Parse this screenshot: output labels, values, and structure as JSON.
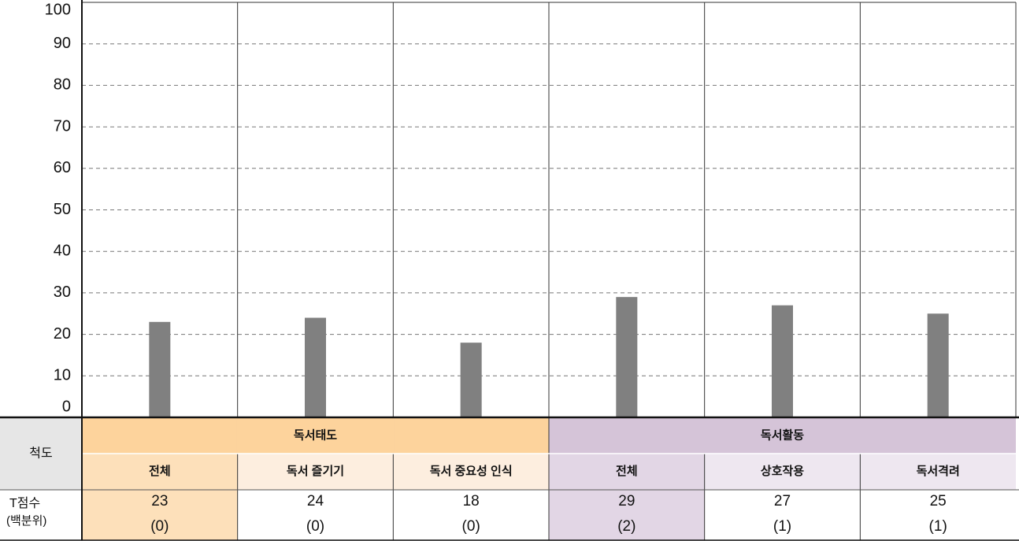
{
  "chart_data": {
    "type": "bar",
    "categories": [
      "전체",
      "독서 즐기기",
      "독서 중요성 인식",
      "전체",
      "상호작용",
      "독서격려"
    ],
    "category_groups": [
      "독서태도",
      "독서태도",
      "독서태도",
      "독서활동",
      "독서활동",
      "독서활동"
    ],
    "values": [
      23,
      24,
      18,
      29,
      27,
      25
    ],
    "percentiles": [
      "(0)",
      "(0)",
      "(0)",
      "(2)",
      "(1)",
      "(1)"
    ],
    "color": "#808080",
    "ylim": [
      0,
      100
    ],
    "yticks": [
      0,
      10,
      20,
      30,
      40,
      50,
      60,
      70,
      80,
      90,
      100
    ],
    "grid": true,
    "scale_label": "척도",
    "score_label": [
      "T점수",
      "(백분위)"
    ]
  }
}
